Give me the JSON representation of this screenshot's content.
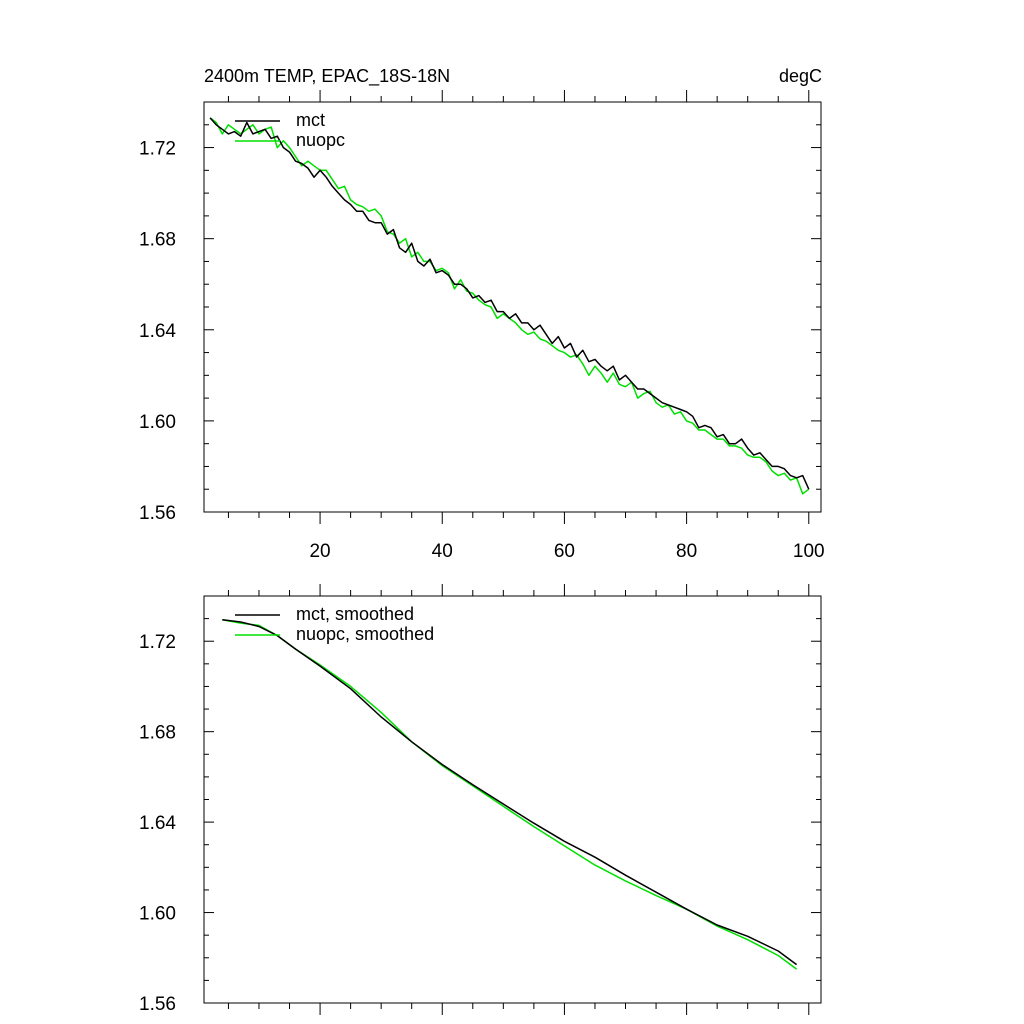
{
  "title_left": "2400m TEMP, EPAC_18S-18N",
  "title_right": "degC",
  "colors": {
    "mct": "#000000",
    "nuopc": "#00e000",
    "axis": "#000000"
  },
  "chart_data": [
    {
      "type": "line",
      "title": "2400m TEMP, EPAC_18S-18N",
      "units": "degC",
      "xlim": [
        1,
        102
      ],
      "ylim": [
        1.56,
        1.74
      ],
      "xticks": [
        20,
        40,
        60,
        80,
        100
      ],
      "xtick_labels": [
        "20",
        "40",
        "60",
        "80",
        "100"
      ],
      "yticks": [
        1.56,
        1.6,
        1.64,
        1.68,
        1.72
      ],
      "ytick_labels": [
        "1.56",
        "1.60",
        "1.64",
        "1.68",
        "1.72"
      ],
      "series": [
        {
          "name": "mct",
          "x_start": 2,
          "values": [
            1.733,
            1.73,
            1.728,
            1.726,
            1.727,
            1.725,
            1.731,
            1.726,
            1.727,
            1.728,
            1.724,
            1.725,
            1.72,
            1.718,
            1.714,
            1.713,
            1.711,
            1.707,
            1.71,
            1.707,
            1.703,
            1.7,
            1.697,
            1.695,
            1.692,
            1.692,
            1.688,
            1.687,
            1.687,
            1.682,
            1.684,
            1.676,
            1.674,
            1.678,
            1.67,
            1.668,
            1.671,
            1.665,
            1.666,
            1.664,
            1.66,
            1.66,
            1.658,
            1.654,
            1.655,
            1.652,
            1.653,
            1.648,
            1.648,
            1.645,
            1.647,
            1.643,
            1.643,
            1.64,
            1.642,
            1.638,
            1.634,
            1.637,
            1.632,
            1.634,
            1.628,
            1.631,
            1.626,
            1.627,
            1.624,
            1.622,
            1.624,
            1.618,
            1.62,
            1.617,
            1.614,
            1.614,
            1.612,
            1.61,
            1.608,
            1.607,
            1.606,
            1.605,
            1.604,
            1.602,
            1.597,
            1.598,
            1.597,
            1.593,
            1.594,
            1.59,
            1.59,
            1.592,
            1.588,
            1.585,
            1.586,
            1.583,
            1.58,
            1.58,
            1.579,
            1.576,
            1.575,
            1.576,
            1.57
          ]
        },
        {
          "name": "nuopc",
          "x_start": 2,
          "values": [
            1.733,
            1.731,
            1.726,
            1.73,
            1.728,
            1.726,
            1.728,
            1.73,
            1.726,
            1.728,
            1.729,
            1.72,
            1.723,
            1.72,
            1.716,
            1.712,
            1.714,
            1.712,
            1.71,
            1.71,
            1.706,
            1.702,
            1.703,
            1.697,
            1.695,
            1.694,
            1.692,
            1.693,
            1.69,
            1.683,
            1.682,
            1.678,
            1.68,
            1.672,
            1.674,
            1.67,
            1.67,
            1.666,
            1.667,
            1.665,
            1.658,
            1.662,
            1.657,
            1.656,
            1.653,
            1.651,
            1.65,
            1.645,
            1.647,
            1.645,
            1.643,
            1.64,
            1.638,
            1.639,
            1.636,
            1.635,
            1.633,
            1.631,
            1.63,
            1.628,
            1.629,
            1.625,
            1.62,
            1.624,
            1.621,
            1.617,
            1.621,
            1.616,
            1.615,
            1.617,
            1.61,
            1.612,
            1.613,
            1.608,
            1.606,
            1.607,
            1.603,
            1.604,
            1.6,
            1.599,
            1.596,
            1.596,
            1.594,
            1.592,
            1.592,
            1.589,
            1.589,
            1.588,
            1.585,
            1.584,
            1.584,
            1.582,
            1.578,
            1.576,
            1.577,
            1.574,
            1.575,
            1.568,
            1.57
          ]
        }
      ],
      "legend": [
        "mct",
        "nuopc"
      ],
      "legend_position": "top-left"
    },
    {
      "type": "line",
      "xlim": [
        1,
        102
      ],
      "ylim": [
        1.56,
        1.74
      ],
      "xticks": [
        20,
        40,
        60,
        80,
        100
      ],
      "yticks": [
        1.56,
        1.6,
        1.64,
        1.68,
        1.72
      ],
      "ytick_labels": [
        "1.56",
        "1.60",
        "1.64",
        "1.68",
        "1.72"
      ],
      "series": [
        {
          "name": "mct, smoothed",
          "points": [
            [
              4,
              1.7295
            ],
            [
              7,
              1.7285
            ],
            [
              10,
              1.7265
            ],
            [
              13,
              1.7225
            ],
            [
              16,
              1.7165
            ],
            [
              20,
              1.709
            ],
            [
              25,
              1.699
            ],
            [
              30,
              1.6865
            ],
            [
              35,
              1.6755
            ],
            [
              40,
              1.6655
            ],
            [
              45,
              1.6565
            ],
            [
              50,
              1.648
            ],
            [
              55,
              1.6395
            ],
            [
              60,
              1.6315
            ],
            [
              65,
              1.6245
            ],
            [
              70,
              1.6165
            ],
            [
              75,
              1.609
            ],
            [
              80,
              1.6015
            ],
            [
              85,
              1.5945
            ],
            [
              90,
              1.5895
            ],
            [
              95,
              1.583
            ],
            [
              98,
              1.577
            ]
          ]
        },
        {
          "name": "nuopc, smoothed",
          "points": [
            [
              4,
              1.7295
            ],
            [
              7,
              1.728
            ],
            [
              10,
              1.727
            ],
            [
              13,
              1.7225
            ],
            [
              16,
              1.7165
            ],
            [
              20,
              1.7095
            ],
            [
              25,
              1.7
            ],
            [
              30,
              1.6885
            ],
            [
              35,
              1.6755
            ],
            [
              40,
              1.665
            ],
            [
              45,
              1.656
            ],
            [
              50,
              1.647
            ],
            [
              55,
              1.638
            ],
            [
              60,
              1.6295
            ],
            [
              65,
              1.621
            ],
            [
              70,
              1.614
            ],
            [
              75,
              1.6075
            ],
            [
              80,
              1.6015
            ],
            [
              85,
              1.594
            ],
            [
              90,
              1.588
            ],
            [
              95,
              1.581
            ],
            [
              98,
              1.575
            ]
          ]
        }
      ],
      "legend": [
        "mct, smoothed",
        "nuopc, smoothed"
      ],
      "legend_position": "top-left"
    }
  ]
}
